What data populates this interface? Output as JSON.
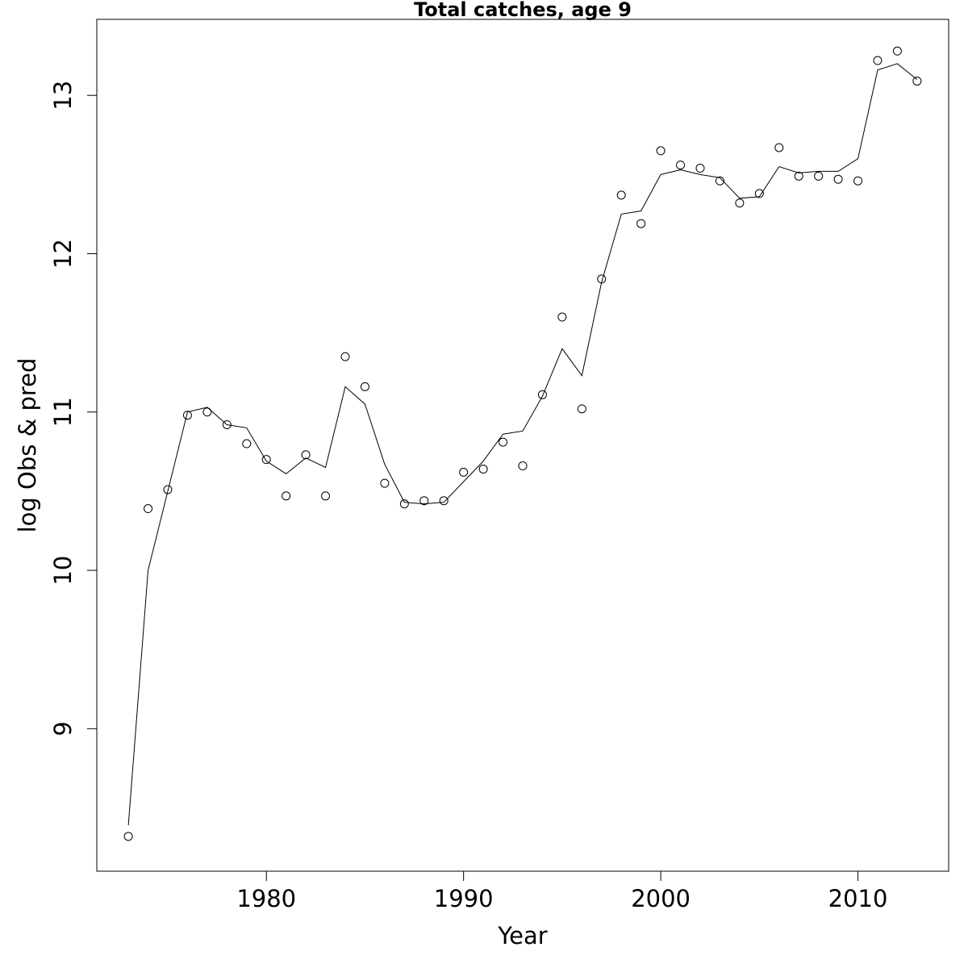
{
  "chart_data": {
    "type": "line",
    "title": "Total catches, age 9",
    "xlabel": "Year",
    "ylabel": "log Obs & pred",
    "xlim": [
      1971.4,
      2014.6
    ],
    "ylim": [
      8.1,
      13.48
    ],
    "x_ticks": [
      1980,
      1990,
      2000,
      2010
    ],
    "x_tick_labels": [
      "1980",
      "1990",
      "2000",
      "2010"
    ],
    "y_ticks": [
      9,
      10,
      11,
      12,
      13
    ],
    "y_tick_labels": [
      "9",
      "10",
      "11",
      "12",
      "13"
    ],
    "grid": false,
    "legend": "none",
    "colors": {
      "line": "#000000",
      "points": "#000000",
      "background": "#ffffff"
    },
    "x": [
      1973,
      1974,
      1975,
      1976,
      1977,
      1978,
      1979,
      1980,
      1981,
      1982,
      1983,
      1984,
      1985,
      1986,
      1987,
      1988,
      1989,
      1990,
      1991,
      1992,
      1993,
      1994,
      1995,
      1996,
      1997,
      1998,
      1999,
      2000,
      2001,
      2002,
      2003,
      2004,
      2005,
      2006,
      2007,
      2008,
      2009,
      2010,
      2011,
      2012,
      2013
    ],
    "series": [
      {
        "kind": "points",
        "values": [
          8.32,
          10.39,
          10.51,
          10.98,
          11.0,
          10.92,
          10.8,
          10.7,
          10.47,
          10.73,
          10.47,
          11.35,
          11.16,
          10.55,
          10.42,
          10.44,
          10.44,
          10.62,
          10.64,
          10.81,
          10.66,
          11.11,
          11.6,
          11.02,
          11.84,
          12.37,
          12.19,
          12.65,
          12.56,
          12.54,
          12.46,
          12.32,
          12.38,
          12.67,
          12.49,
          12.49,
          12.47,
          12.46,
          13.22,
          13.28,
          13.09
        ]
      },
      {
        "kind": "line",
        "values": [
          8.39,
          10.0,
          10.5,
          11.0,
          11.03,
          10.92,
          10.9,
          10.69,
          10.61,
          10.71,
          10.65,
          11.16,
          11.05,
          10.67,
          10.43,
          10.42,
          10.43,
          10.56,
          10.69,
          10.86,
          10.88,
          11.1,
          11.4,
          11.23,
          11.82,
          12.25,
          12.27,
          12.5,
          12.53,
          12.5,
          12.48,
          12.35,
          12.36,
          12.55,
          12.51,
          12.52,
          12.52,
          12.6,
          13.16,
          13.2,
          13.1
        ]
      }
    ]
  }
}
